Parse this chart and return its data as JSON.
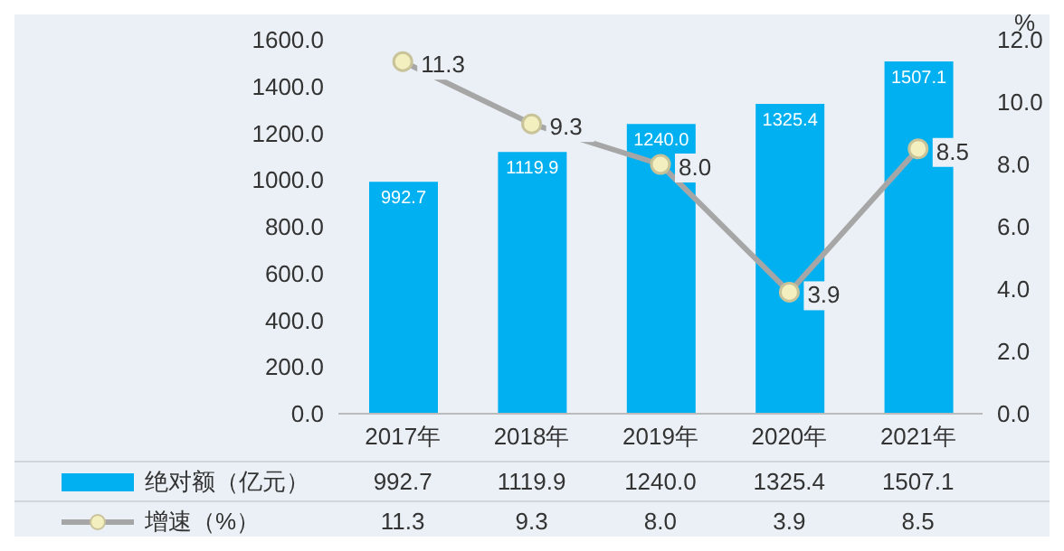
{
  "chart_data": {
    "type": "bar",
    "categories": [
      "2017年",
      "2018年",
      "2019年",
      "2020年",
      "2021年"
    ],
    "series": [
      {
        "name": "绝对额（亿元）",
        "type": "bar",
        "color": "#00b0f0",
        "values": [
          992.7,
          1119.9,
          1240.0,
          1325.4,
          1507.1
        ],
        "value_labels": [
          "992.7",
          "1119.9",
          "1240.0",
          "1325.4",
          "1507.1"
        ]
      },
      {
        "name": "增速（%）",
        "type": "line",
        "axis": "y2",
        "color": "#a6a6a6",
        "marker": "circle",
        "values": [
          11.3,
          9.3,
          8.0,
          3.9,
          8.5
        ],
        "value_labels": [
          "11.3",
          "9.3",
          "8.0",
          "3.9",
          "8.5"
        ]
      }
    ],
    "y2label": "%",
    "ylim": [
      0,
      1600
    ],
    "yticks": [
      {
        "value": 0,
        "label": "0.0"
      },
      {
        "value": 200,
        "label": "200.0"
      },
      {
        "value": 400,
        "label": "400.0"
      },
      {
        "value": 600,
        "label": "600.0"
      },
      {
        "value": 800,
        "label": "800.0"
      },
      {
        "value": 1000,
        "label": "1000.0"
      },
      {
        "value": 1200,
        "label": "1200.0"
      },
      {
        "value": 1400,
        "label": "1400.0"
      },
      {
        "value": 1600,
        "label": "1600.0"
      }
    ],
    "y2lim": [
      0,
      12
    ],
    "y2ticks": [
      {
        "value": 0,
        "label": "0.0"
      },
      {
        "value": 2,
        "label": "2.0"
      },
      {
        "value": 4,
        "label": "4.0"
      },
      {
        "value": 6,
        "label": "6.0"
      },
      {
        "value": 8,
        "label": "8.0"
      },
      {
        "value": 10,
        "label": "10.0"
      },
      {
        "value": 12,
        "label": "12.0"
      }
    ],
    "legend": "bottom"
  }
}
